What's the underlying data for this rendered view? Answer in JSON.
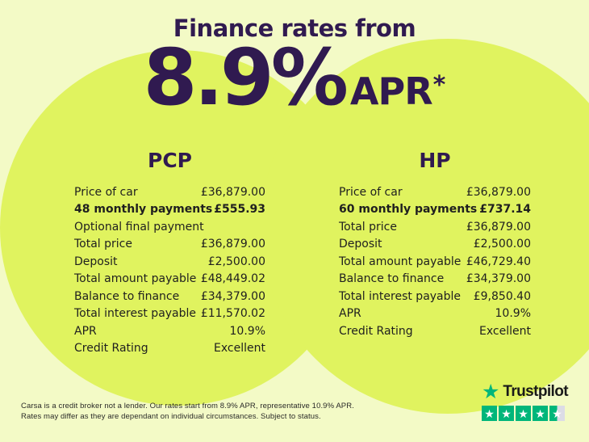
{
  "theme": {
    "background": "#f3fac6",
    "circle": "#e0f35f",
    "purple": "#301a50",
    "text": "#1f1f1f",
    "tpgreen": "#00b67a",
    "tpgrey": "#dcdce6"
  },
  "header": {
    "title": "Finance rates from",
    "rate": "8.9%",
    "apr_label": "APR",
    "asterisk": "*"
  },
  "pcp": {
    "title": "PCP",
    "rows": [
      {
        "label": "Price of car",
        "value": "£36,879.00"
      },
      {
        "label": "48 monthly payments",
        "value": "£555.93",
        "bold": true
      },
      {
        "label": "Optional final payment",
        "value": ""
      },
      {
        "label": "Total price",
        "value": "£36,879.00"
      },
      {
        "label": "Deposit",
        "value": "£2,500.00"
      },
      {
        "label": "Total amount payable",
        "value": "£48,449.02"
      },
      {
        "label": "Balance to finance",
        "value": "£34,379.00"
      },
      {
        "label": "Total interest payable",
        "value": "£11,570.02"
      },
      {
        "label": "APR",
        "value": "10.9%"
      },
      {
        "label": "Credit Rating",
        "value": "Excellent"
      }
    ]
  },
  "hp": {
    "title": "HP",
    "rows": [
      {
        "label": "Price of car",
        "value": "£36,879.00"
      },
      {
        "label": "60 monthly payments",
        "value": "£737.14",
        "bold": true
      },
      {
        "label": "Total price",
        "value": "£36,879.00"
      },
      {
        "label": "Deposit",
        "value": "£2,500.00"
      },
      {
        "label": "Total amount payable",
        "value": "£46,729.40"
      },
      {
        "label": "Balance to finance",
        "value": "£34,379.00"
      },
      {
        "label": "Total interest payable",
        "value": "£9,850.40"
      },
      {
        "label": "APR",
        "value": "10.9%"
      },
      {
        "label": "Credit Rating",
        "value": "Excellent"
      }
    ]
  },
  "disclaimer": {
    "line1": "Carsa is a credit broker not a lender. Our rates start from 8.9% APR, representative 10.9% APR.",
    "line2": "Rates may differ as they are dependant on individual circumstances. Subject to status."
  },
  "trustpilot": {
    "brand": "Trustpilot",
    "stars_full": 4,
    "stars_half": 1
  }
}
